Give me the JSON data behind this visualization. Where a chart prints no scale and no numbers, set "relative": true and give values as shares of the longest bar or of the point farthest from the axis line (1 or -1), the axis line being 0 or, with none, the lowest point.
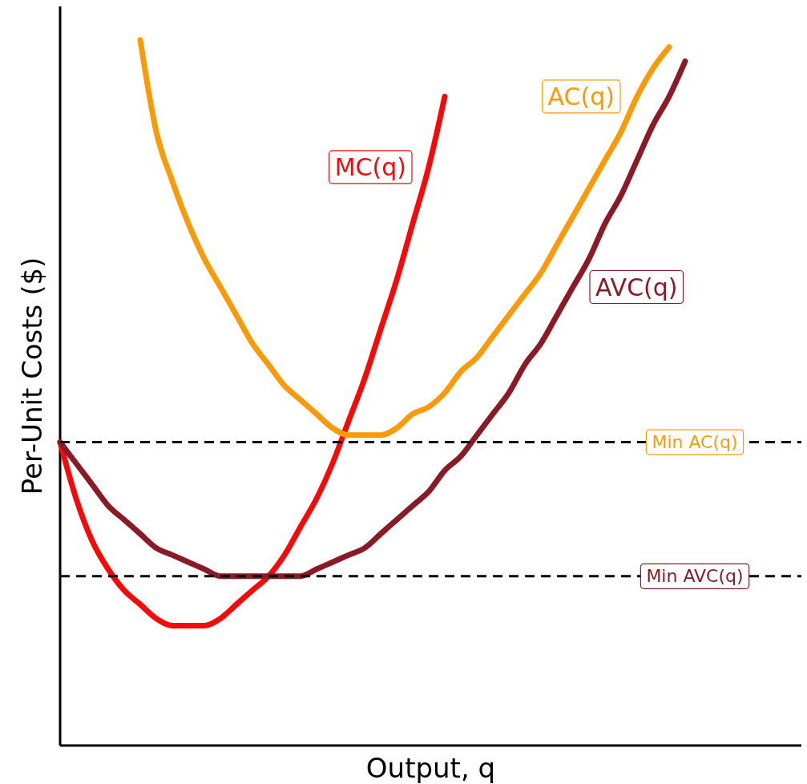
{
  "chart_data": {
    "type": "line",
    "relative": true,
    "xlabel": "Output, q",
    "ylabel": "Per-Unit Costs ($)",
    "categories": [
      null,
      null,
      null,
      null,
      null,
      null,
      null,
      null,
      null,
      null,
      null,
      null,
      null,
      null,
      null,
      null,
      null,
      null,
      null,
      null,
      null,
      null,
      null,
      null,
      null,
      null,
      null,
      null,
      null,
      null,
      null,
      null,
      null,
      null,
      null,
      null,
      null,
      null,
      null,
      null,
      null,
      null,
      null,
      null,
      null,
      null,
      null
    ],
    "series": [
      {
        "name": "MC(q)",
        "color": "#f50a0a",
        "values": [
          0.43,
          0.35,
          0.29,
          0.25,
          0.22,
          0.2,
          0.18,
          0.17,
          0.17,
          0.17,
          0.18,
          0.2,
          0.22,
          0.24,
          0.27,
          0.31,
          0.35,
          0.4,
          0.46,
          0.52,
          0.59,
          0.66,
          0.74,
          0.82,
          0.92,
          null,
          null,
          null,
          null,
          null,
          null,
          null,
          null,
          null,
          null,
          null,
          null,
          null,
          null,
          null,
          null,
          null,
          null,
          null,
          null,
          null,
          null
        ]
      },
      {
        "name": "AC(q)",
        "color": "#fb9a09",
        "values": [
          null,
          null,
          null,
          null,
          null,
          1,
          0.87,
          0.8,
          0.74,
          0.69,
          0.65,
          0.61,
          0.57,
          0.54,
          0.51,
          0.49,
          0.47,
          0.45,
          0.44,
          0.44,
          0.44,
          0.45,
          0.47,
          0.48,
          0.5,
          0.53,
          0.55,
          0.58,
          0.61,
          0.64,
          0.67,
          0.71,
          0.75,
          0.79,
          0.83,
          0.87,
          0.92,
          0.96,
          0.99,
          null,
          null,
          null,
          null,
          null,
          null,
          null,
          null
        ]
      },
      {
        "name": "AVC(q)",
        "color": "#8b1a27",
        "values": [
          0.43,
          0.4,
          0.37,
          0.34,
          0.32,
          0.3,
          0.28,
          0.27,
          0.26,
          0.25,
          0.24,
          0.24,
          0.24,
          0.24,
          0.24,
          0.24,
          0.25,
          0.26,
          0.27,
          0.28,
          0.3,
          0.32,
          0.34,
          0.36,
          0.39,
          0.41,
          0.44,
          0.47,
          0.5,
          0.54,
          0.57,
          0.61,
          0.65,
          0.69,
          0.74,
          0.78,
          0.83,
          0.88,
          0.92,
          0.97,
          null,
          null,
          null,
          null,
          null,
          null,
          null
        ]
      }
    ],
    "ref_lines": [
      {
        "axis": "y",
        "value": 0.43,
        "label": "Min AC(q)",
        "color": "#000000",
        "line_style": "dashed"
      },
      {
        "axis": "y",
        "value": 0.24,
        "label": "Min AVC(q)",
        "color": "#000000",
        "line_style": "dashed"
      }
    ],
    "marker": "none",
    "line_style": "solid"
  }
}
